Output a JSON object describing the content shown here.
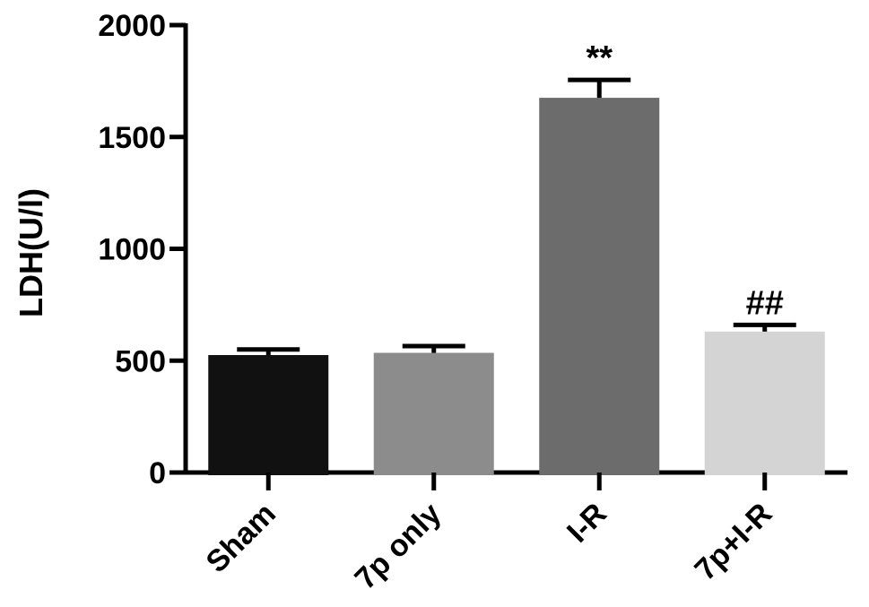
{
  "chart_data": {
    "type": "bar",
    "title": "",
    "xlabel": "",
    "ylabel": "LDH(U/l)",
    "ylim": [
      0,
      2000
    ],
    "yticks": [
      0,
      500,
      1000,
      1500,
      2000
    ],
    "categories": [
      "Sham",
      "7p only",
      "I-R",
      "7p+I-R"
    ],
    "values": [
      525,
      535,
      1675,
      630
    ],
    "errors": [
      25,
      30,
      80,
      30
    ],
    "bar_colors": [
      "#111111",
      "#8c8c8c",
      "#6c6c6c",
      "#d4d4d4"
    ],
    "annotations": [
      "",
      "",
      "**",
      "##"
    ],
    "grid": false,
    "legend": "none"
  }
}
